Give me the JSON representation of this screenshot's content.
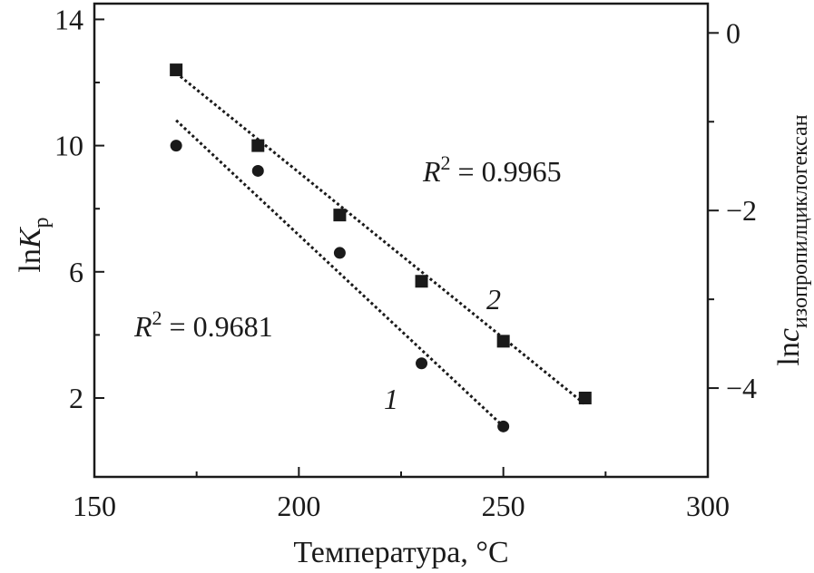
{
  "chart_data": {
    "type": "scatter",
    "xlabel": "Температура, °C",
    "ylabel": {
      "main": "ln",
      "italic": "K",
      "sub": "p"
    },
    "y2label": {
      "main": "ln",
      "italic": "c",
      "sub": "изопропилциклогексан"
    },
    "xlim": [
      150,
      300
    ],
    "ylim": [
      -0.5,
      14.5
    ],
    "y2lim": [
      -5,
      0.33
    ],
    "xticks": [
      "150",
      "200",
      "250",
      "300"
    ],
    "yticks": [
      "2",
      "6",
      "10",
      "14"
    ],
    "y2ticks": [
      "0",
      "−2",
      "−4"
    ],
    "grid": false,
    "series": [
      {
        "label": "1",
        "marker": "circle",
        "x": [
          170,
          190,
          210,
          230,
          250
        ],
        "y": [
          10.0,
          9.2,
          6.6,
          3.1,
          1.1
        ],
        "r2": {
          "lead": "R",
          "sup": "2",
          "rest": " = 0.9681"
        },
        "fit": {
          "x": [
            170,
            250
          ],
          "y": [
            10.8,
            1.1
          ]
        }
      },
      {
        "label": "2",
        "marker": "square",
        "x": [
          170,
          190,
          210,
          230,
          250,
          270
        ],
        "y": [
          12.4,
          10.0,
          7.8,
          5.7,
          3.8,
          2.0
        ],
        "r2": {
          "lead": "R",
          "sup": "2",
          "rest": " = 0.9965"
        },
        "fit": {
          "x": [
            170,
            270
          ],
          "y": [
            12.3,
            1.8
          ]
        }
      }
    ]
  }
}
